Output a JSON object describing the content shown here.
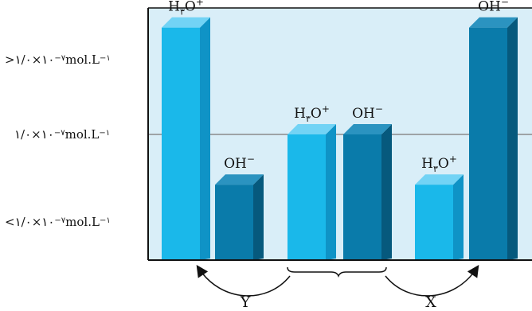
{
  "chart_data": {
    "type": "bar",
    "title": "",
    "xlabel": "",
    "ylabel": "",
    "y_levels": [
      {
        "key": "above",
        "text": ">۱/۰×۱۰",
        "exp": "−۷",
        "unit": "mol.L",
        "unit_exp": "−۱"
      },
      {
        "key": "neutral",
        "text": "۱/۰×۱۰",
        "exp": "−۷",
        "unit": "mol.L",
        "unit_exp": "−۱"
      },
      {
        "key": "below",
        "text": "<۱/۰×۱۰",
        "exp": "−۷",
        "unit": "mol.L",
        "unit_exp": "−۱"
      }
    ],
    "groups": [
      {
        "bars": [
          {
            "label_main": "H",
            "label_sub": "۳",
            "label_tail": "O",
            "label_sup": "+",
            "species": "H3O+",
            "value": 1.85
          },
          {
            "label_main": "OH",
            "label_sub": "",
            "label_tail": "",
            "label_sup": "−",
            "species": "OH-",
            "value": 0.6
          }
        ]
      },
      {
        "bars": [
          {
            "label_main": "H",
            "label_sub": "۳",
            "label_tail": "O",
            "label_sup": "+",
            "species": "H3O+",
            "value": 1.0
          },
          {
            "label_main": "OH",
            "label_sub": "",
            "label_tail": "",
            "label_sup": "−",
            "species": "OH-",
            "value": 1.0
          }
        ]
      },
      {
        "bars": [
          {
            "label_main": "H",
            "label_sub": "۳",
            "label_tail": "O",
            "label_sup": "+",
            "species": "H3O+",
            "value": 0.6
          },
          {
            "label_main": "OH",
            "label_sub": "",
            "label_tail": "",
            "label_sup": "−",
            "species": "OH-",
            "value": 1.85
          }
        ]
      }
    ],
    "arrows": [
      {
        "label": "Y",
        "from_group": 1,
        "to_group": 0
      },
      {
        "label": "X",
        "from_group": 1,
        "to_group": 2
      }
    ],
    "colors": {
      "panel": "#d9eef8",
      "h3o_front": "#1ab8ea",
      "h3o_side": "#0f93c6",
      "h3o_top": "#72d3f5",
      "oh_front": "#0a7baa",
      "oh_side": "#06597d",
      "oh_top": "#2b93c0",
      "neutral_line": "#8a8a8a",
      "axis": "#111111"
    }
  }
}
